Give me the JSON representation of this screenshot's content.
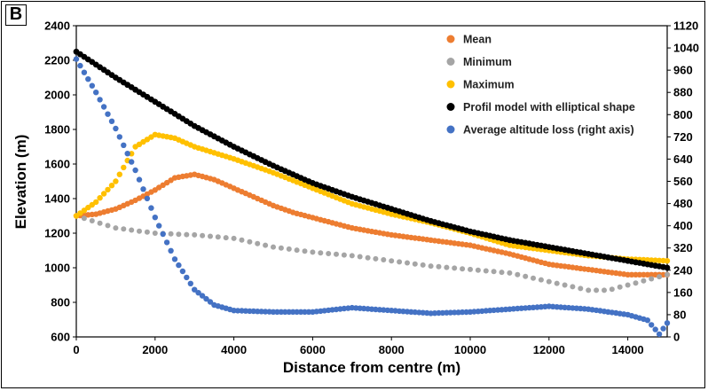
{
  "panel_label": "B",
  "chart_data": {
    "type": "scatter",
    "xlabel": "Distance from centre (m)",
    "ylabel": "Elevation (m)",
    "xlim": [
      0,
      15000
    ],
    "ylim": [
      600,
      2400
    ],
    "y2lim": [
      0,
      1120
    ],
    "x_ticks": [
      0,
      2000,
      4000,
      6000,
      8000,
      10000,
      12000,
      14000
    ],
    "y_ticks": [
      600,
      800,
      1000,
      1200,
      1400,
      1600,
      1800,
      2000,
      2200,
      2400
    ],
    "y2_ticks": [
      0,
      80,
      160,
      240,
      320,
      400,
      480,
      560,
      640,
      720,
      800,
      880,
      960,
      1040,
      1120
    ],
    "legend_position": "top-right",
    "grid": false,
    "series": [
      {
        "name": "Mean",
        "color": "#ED7D31",
        "axis": "left",
        "points": [
          [
            0,
            1300
          ],
          [
            500,
            1310
          ],
          [
            1000,
            1340
          ],
          [
            1500,
            1390
          ],
          [
            2000,
            1450
          ],
          [
            2500,
            1520
          ],
          [
            3000,
            1540
          ],
          [
            3500,
            1510
          ],
          [
            4000,
            1460
          ],
          [
            4500,
            1410
          ],
          [
            5000,
            1360
          ],
          [
            5500,
            1320
          ],
          [
            6000,
            1290
          ],
          [
            7000,
            1230
          ],
          [
            8000,
            1190
          ],
          [
            9000,
            1160
          ],
          [
            10000,
            1130
          ],
          [
            11000,
            1080
          ],
          [
            12000,
            1020
          ],
          [
            13000,
            990
          ],
          [
            14000,
            960
          ],
          [
            15000,
            960
          ]
        ]
      },
      {
        "name": "Minimum",
        "color": "#A5A5A5",
        "axis": "left",
        "points": [
          [
            0,
            1300
          ],
          [
            1000,
            1230
          ],
          [
            2000,
            1200
          ],
          [
            3000,
            1190
          ],
          [
            4000,
            1170
          ],
          [
            5000,
            1120
          ],
          [
            6000,
            1090
          ],
          [
            7000,
            1070
          ],
          [
            8000,
            1040
          ],
          [
            9000,
            1010
          ],
          [
            10000,
            990
          ],
          [
            11000,
            970
          ],
          [
            12000,
            920
          ],
          [
            13000,
            870
          ],
          [
            13500,
            870
          ],
          [
            14000,
            900
          ],
          [
            15000,
            960
          ]
        ]
      },
      {
        "name": "Maximum",
        "color": "#FFC000",
        "axis": "left",
        "points": [
          [
            0,
            1300
          ],
          [
            500,
            1380
          ],
          [
            1000,
            1500
          ],
          [
            1500,
            1700
          ],
          [
            2000,
            1770
          ],
          [
            2500,
            1750
          ],
          [
            3000,
            1700
          ],
          [
            4000,
            1630
          ],
          [
            5000,
            1550
          ],
          [
            6000,
            1460
          ],
          [
            7000,
            1370
          ],
          [
            8000,
            1310
          ],
          [
            9000,
            1260
          ],
          [
            10000,
            1200
          ],
          [
            11000,
            1130
          ],
          [
            12000,
            1100
          ],
          [
            13000,
            1070
          ],
          [
            14000,
            1050
          ],
          [
            15000,
            1040
          ]
        ]
      },
      {
        "name": "Profil model with elliptical shape",
        "color": "#000000",
        "axis": "left",
        "points": [
          [
            0,
            2250
          ],
          [
            1000,
            2100
          ],
          [
            2000,
            1960
          ],
          [
            3000,
            1820
          ],
          [
            4000,
            1700
          ],
          [
            5000,
            1590
          ],
          [
            6000,
            1490
          ],
          [
            7000,
            1410
          ],
          [
            8000,
            1340
          ],
          [
            9000,
            1270
          ],
          [
            10000,
            1210
          ],
          [
            11000,
            1160
          ],
          [
            12000,
            1120
          ],
          [
            13000,
            1080
          ],
          [
            14000,
            1040
          ],
          [
            15000,
            1000
          ]
        ]
      },
      {
        "name": "Average altitude loss (right axis)",
        "color": "#4472C4",
        "axis": "right",
        "points": [
          [
            0,
            1000
          ],
          [
            500,
            880
          ],
          [
            1000,
            750
          ],
          [
            1500,
            600
          ],
          [
            2000,
            430
          ],
          [
            2500,
            280
          ],
          [
            3000,
            170
          ],
          [
            3500,
            115
          ],
          [
            4000,
            95
          ],
          [
            5000,
            90
          ],
          [
            6000,
            90
          ],
          [
            7000,
            105
          ],
          [
            8000,
            95
          ],
          [
            9000,
            85
          ],
          [
            10000,
            90
          ],
          [
            11000,
            100
          ],
          [
            12000,
            110
          ],
          [
            13000,
            100
          ],
          [
            14000,
            80
          ],
          [
            14500,
            60
          ],
          [
            14800,
            10
          ],
          [
            15000,
            50
          ]
        ]
      }
    ]
  }
}
